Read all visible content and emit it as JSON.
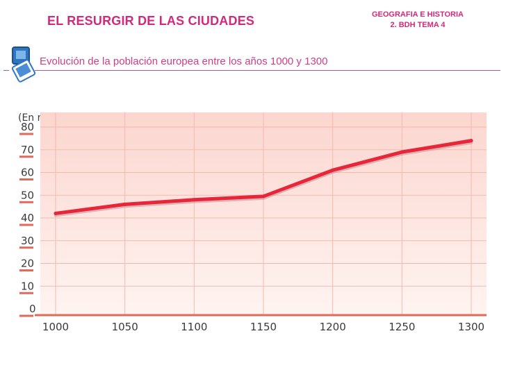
{
  "header": {
    "title": "EL RESURGIR DE LAS CIUDADES",
    "course_line1": "GEOGRAFIA E HISTORIA",
    "course_line2": "2. BDH  TEMA 4",
    "subtitle": "Evolución de la población europea entre los años 1000 y 1300"
  },
  "colors": {
    "accent": "#d4297a",
    "plot_fill": "#fde2dc",
    "grid": "#f3b9ae",
    "tick": "#e06a5a",
    "line": "#e8263a"
  },
  "chart_data": {
    "type": "line",
    "title": "",
    "unit_label": "(En millones de habitantes)",
    "xlabel": "",
    "ylabel": "(En millones de habitantes)",
    "x": [
      1000,
      1050,
      1100,
      1150,
      1200,
      1250,
      1300
    ],
    "x_tick_labels": [
      "1000",
      "1050",
      "1100",
      "1150",
      "1200",
      "1250",
      "1300"
    ],
    "y_ticks": [
      80,
      70,
      60,
      50,
      40,
      30,
      20,
      10,
      0
    ],
    "y_tick_labels": [
      "80",
      "70",
      "60",
      "50",
      "40",
      "30",
      "20",
      "10",
      "0"
    ],
    "xlim": [
      990,
      1305
    ],
    "ylim": [
      0,
      80
    ],
    "grid": true,
    "series": [
      {
        "name": "Población europea",
        "x": [
          1000,
          1050,
          1100,
          1150,
          1200,
          1250,
          1300
        ],
        "values": [
          42,
          46,
          48,
          49.5,
          61,
          69,
          74
        ]
      }
    ]
  }
}
